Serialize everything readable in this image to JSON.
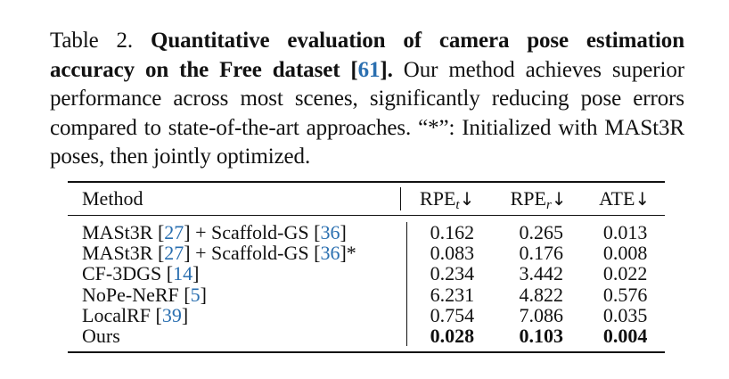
{
  "caption": {
    "label": "Table 2.",
    "bold_title_pre": "Quantitative evaluation of camera pose estimation accuracy on the Free dataset [",
    "bold_title_ref": "61",
    "bold_title_post": "].",
    "text": "Our method achieves superior performance across most scenes, significantly reducing pose errors compared to state-of-the-art approaches. “*”: Initialized with MASt3R poses, then jointly optimized."
  },
  "table": {
    "headers": {
      "method": "Method",
      "rpe_t_main": "RPE",
      "rpe_t_sub": "t",
      "rpe_r_main": "RPE",
      "rpe_r_sub": "r",
      "ate": "ATE",
      "arrow": "↓"
    },
    "rows": [
      {
        "method_pre": "MASt3R [",
        "ref1": "27",
        "method_mid": "] + Scaffold-GS [",
        "ref2": "36",
        "method_post": "]",
        "rpe_t": "0.162",
        "rpe_r": "0.265",
        "ate": "0.013"
      },
      {
        "method_pre": "MASt3R [",
        "ref1": "27",
        "method_mid": "] + Scaffold-GS [",
        "ref2": "36",
        "method_post": "]*",
        "rpe_t": "0.083",
        "rpe_r": "0.176",
        "ate": "0.008"
      },
      {
        "method_pre": "CF-3DGS [",
        "ref1": "14",
        "method_post": "]",
        "rpe_t": "0.234",
        "rpe_r": "3.442",
        "ate": "0.022"
      },
      {
        "method_pre": "NoPe-NeRF [",
        "ref1": "5",
        "method_post": "]",
        "rpe_t": "6.231",
        "rpe_r": "4.822",
        "ate": "0.576"
      },
      {
        "method_pre": "LocalRF [",
        "ref1": "39",
        "method_post": "]",
        "rpe_t": "0.754",
        "rpe_r": "7.086",
        "ate": "0.035"
      },
      {
        "method_pre": "Ours",
        "rpe_t": "0.028",
        "rpe_r": "0.103",
        "ate": "0.004"
      }
    ]
  }
}
